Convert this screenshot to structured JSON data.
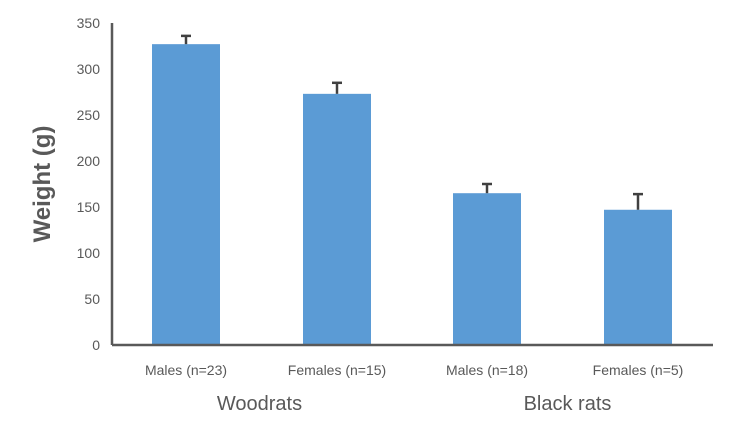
{
  "chart_data": {
    "type": "bar",
    "title": "",
    "xlabel": "",
    "ylabel": "Weight (g)",
    "ylim": [
      0,
      350
    ],
    "yticks": [
      0,
      50,
      100,
      150,
      200,
      250,
      300,
      350
    ],
    "grid": false,
    "legend": null,
    "groups": [
      {
        "name": "Woodrats",
        "categories": [
          "Males (n=23)",
          "Females (n=15)"
        ]
      },
      {
        "name": "Black rats",
        "categories": [
          "Males (n=18)",
          "Females (n=5)"
        ]
      }
    ],
    "categories": [
      "Males (n=23)",
      "Females (n=15)",
      "Males (n=18)",
      "Females (n=5)"
    ],
    "values": [
      327,
      273,
      165,
      147
    ],
    "error_bars_upper": [
      9,
      12,
      10,
      17
    ],
    "bar_color": "#5B9BD5",
    "error_color": "#404040"
  }
}
